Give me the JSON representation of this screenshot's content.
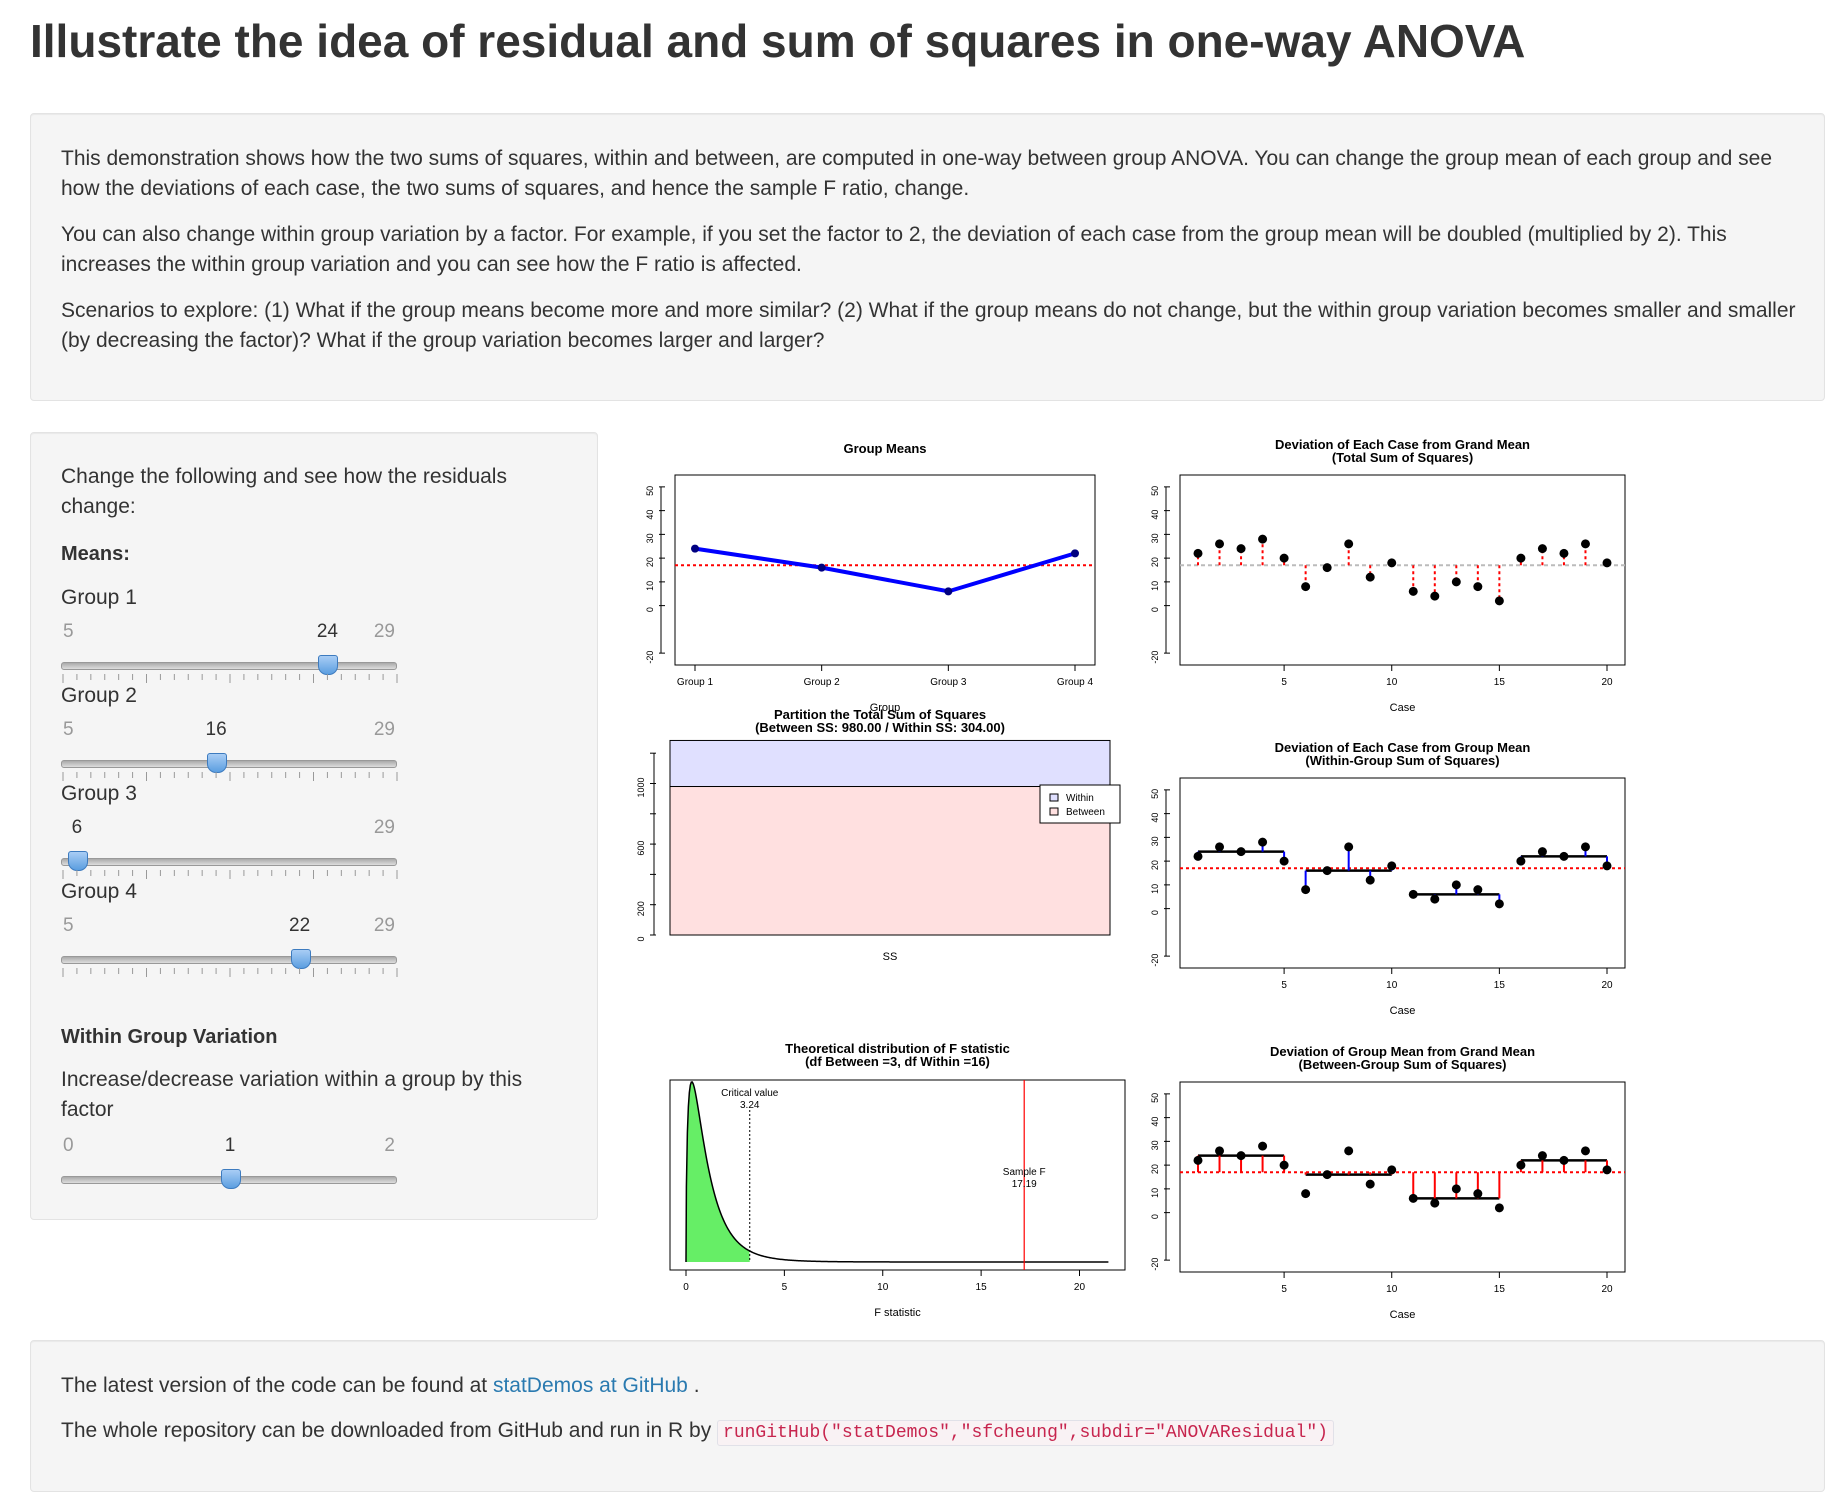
{
  "title": "Illustrate the idea of residual and sum of squares in one-way ANOVA",
  "intro": {
    "p1": "This demonstration shows how the two sums of squares, within and between, are computed in one-way between group ANOVA. You can change the group mean of each group and see how the deviations of each case, the two sums of squares, and hence the sample F ratio, change.",
    "p2": "You can also change within group variation by a factor. For example, if you set the factor to 2, the deviation of each case from the group mean will be doubled (multiplied by 2). This increases the within group variation and you can see how the F ratio is affected.",
    "p3": "Scenarios to explore: (1) What if the group means become more and more similar? (2) What if the group means do not change, but the within group variation becomes smaller and smaller (by decreasing the factor)? What if the group variation becomes larger and larger?"
  },
  "sidebar": {
    "prompt": "Change the following and see how the residuals change:",
    "means_heading": "Means:",
    "sliders": [
      {
        "label": "Group 1",
        "min": 5,
        "max": 29,
        "value": 24,
        "min_label": "5",
        "max_label": "29",
        "value_label": "24"
      },
      {
        "label": "Group 2",
        "min": 5,
        "max": 29,
        "value": 16,
        "min_label": "5",
        "max_label": "29",
        "value_label": "16"
      },
      {
        "label": "Group 3",
        "min": 5,
        "max": 29,
        "value": 6,
        "min_label": "",
        "max_label": "29",
        "value_label": "6"
      },
      {
        "label": "Group 4",
        "min": 5,
        "max": 29,
        "value": 22,
        "min_label": "5",
        "max_label": "29",
        "value_label": "22"
      }
    ],
    "within_heading": "Within Group Variation",
    "within_text": "Increase/decrease variation within a group by this factor",
    "factor": {
      "min": 0,
      "max": 2,
      "value": 1,
      "min_label": "0",
      "max_label": "2",
      "value_label": "1"
    }
  },
  "footer": {
    "line1_prefix": "The latest version of the code can be found at ",
    "link_text": "statDemos at GitHub",
    "line1_suffix": " .",
    "line2_prefix": "The whole repository can be downloaded from GitHub and run in R by ",
    "code": "runGitHub(\"statDemos\",\"sfcheung\",subdir=\"ANOVAResidual\")"
  },
  "colors": {
    "accent": "#0000ff",
    "reference": "#ff0000",
    "within_fill": "#e0e0ff",
    "between_fill": "#ffe0e0",
    "f_fill": "#66ee66"
  },
  "chart_data": [
    {
      "type": "line",
      "title": "Group Means",
      "xlabel": "Group",
      "categories": [
        "Group 1",
        "Group 2",
        "Group 3",
        "Group 4"
      ],
      "values": [
        24,
        16,
        6,
        22
      ],
      "grand_mean": 17,
      "yticks": [
        "-20",
        "0",
        "10",
        "20",
        "30",
        "40",
        "50"
      ],
      "ylim": [
        -25,
        55
      ]
    },
    {
      "type": "scatter",
      "title": "Deviation of Each Case from Grand Mean",
      "subtitle": "(Total Sum of Squares)",
      "xlabel": "Case",
      "x": [
        1,
        2,
        3,
        4,
        5,
        6,
        7,
        8,
        9,
        10,
        11,
        12,
        13,
        14,
        15,
        16,
        17,
        18,
        19,
        20
      ],
      "y": [
        22,
        26,
        24,
        28,
        20,
        8,
        16,
        26,
        12,
        18,
        6,
        4,
        10,
        8,
        2,
        20,
        24,
        22,
        26,
        18
      ],
      "grand_mean": 17,
      "xticks": [
        "5",
        "10",
        "15",
        "20"
      ],
      "yticks": [
        "-20",
        "0",
        "10",
        "20",
        "30",
        "40",
        "50"
      ]
    },
    {
      "type": "bar",
      "title": "Partition the Total Sum of Squares",
      "subtitle": "(Between SS:  980.00 / Within SS:  304.00)",
      "xlabel": "SS",
      "series": [
        {
          "name": "Between",
          "values": [
            980
          ]
        },
        {
          "name": "Within",
          "values": [
            304
          ]
        }
      ],
      "yticks": [
        "0",
        "200",
        "600",
        "1000"
      ],
      "legend": "top-right"
    },
    {
      "type": "scatter",
      "title": "Deviation of Each Case from Group Mean",
      "subtitle": "(Within-Group Sum of Squares)",
      "xlabel": "Case",
      "x": [
        1,
        2,
        3,
        4,
        5,
        6,
        7,
        8,
        9,
        10,
        11,
        12,
        13,
        14,
        15,
        16,
        17,
        18,
        19,
        20
      ],
      "y": [
        22,
        26,
        24,
        28,
        20,
        8,
        16,
        26,
        12,
        18,
        6,
        4,
        10,
        8,
        2,
        20,
        24,
        22,
        26,
        18
      ],
      "group_means": [
        24,
        16,
        6,
        22
      ],
      "grand_mean": 17,
      "xticks": [
        "5",
        "10",
        "15",
        "20"
      ],
      "yticks": [
        "-20",
        "0",
        "10",
        "20",
        "30",
        "40",
        "50"
      ]
    },
    {
      "type": "area",
      "title": "Theoretical distribution of F statistic",
      "subtitle": "(df Between =3, df Within =16)",
      "xlabel": "F statistic",
      "df1": 3,
      "df2": 16,
      "critical_label": "Critical value",
      "critical_value": "3.24",
      "sample_label": "Sample F",
      "sample_value": "17.19",
      "xticks": [
        "0",
        "5",
        "10",
        "15",
        "20"
      ],
      "xlim": [
        0,
        22
      ]
    },
    {
      "type": "scatter",
      "title": "Deviation of Group Mean from Grand Mean",
      "subtitle": "(Between-Group Sum of Squares)",
      "xlabel": "Case",
      "x": [
        1,
        2,
        3,
        4,
        5,
        6,
        7,
        8,
        9,
        10,
        11,
        12,
        13,
        14,
        15,
        16,
        17,
        18,
        19,
        20
      ],
      "y": [
        22,
        26,
        24,
        28,
        20,
        8,
        16,
        26,
        12,
        18,
        6,
        4,
        10,
        8,
        2,
        20,
        24,
        22,
        26,
        18
      ],
      "group_means": [
        24,
        16,
        6,
        22
      ],
      "grand_mean": 17,
      "xticks": [
        "5",
        "10",
        "15",
        "20"
      ],
      "yticks": [
        "-20",
        "0",
        "10",
        "20",
        "30",
        "40",
        "50"
      ]
    }
  ]
}
